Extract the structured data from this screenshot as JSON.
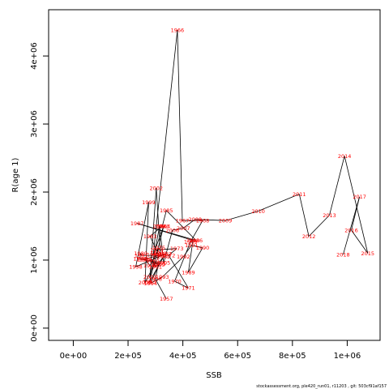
{
  "chart_data": {
    "type": "line",
    "title": "",
    "xlabel": "SSB",
    "ylabel": "R(age 1)",
    "xlim": [
      -90000,
      1120000
    ],
    "ylim": [
      -180000,
      4680000
    ],
    "xticks": [
      {
        "value": 0,
        "label": "0e+00"
      },
      {
        "value": 200000,
        "label": "2e+05"
      },
      {
        "value": 400000,
        "label": "4e+05"
      },
      {
        "value": 600000,
        "label": "6e+05"
      },
      {
        "value": 800000,
        "label": "8e+05"
      },
      {
        "value": 1000000,
        "label": "1e+06"
      }
    ],
    "yticks": [
      {
        "value": 0,
        "label": "0e+00"
      },
      {
        "value": 1000000,
        "label": "1e+06"
      },
      {
        "value": 2000000,
        "label": "2e+06"
      },
      {
        "value": 3000000,
        "label": "3e+06"
      },
      {
        "value": 4000000,
        "label": "4e+06"
      }
    ],
    "grid": false,
    "line_color": "#000000",
    "label_color": "#ff0000",
    "points": [
      {
        "label": "1957",
        "x": 340000,
        "y": 430000
      },
      {
        "label": "1958",
        "x": 300000,
        "y": 720000
      },
      {
        "label": "1959",
        "x": 310000,
        "y": 930000
      },
      {
        "label": "1960",
        "x": 290000,
        "y": 990000
      },
      {
        "label": "1961",
        "x": 300000,
        "y": 900000
      },
      {
        "label": "1962",
        "x": 330000,
        "y": 1050000
      },
      {
        "label": "1963",
        "x": 278000,
        "y": 680000
      },
      {
        "label": "1964",
        "x": 330000,
        "y": 1500000
      },
      {
        "label": "1965",
        "x": 292000,
        "y": 1080000
      },
      {
        "label": "1966",
        "x": 380000,
        "y": 4380000
      },
      {
        "label": "1967",
        "x": 398000,
        "y": 1580000
      },
      {
        "label": "1968",
        "x": 472000,
        "y": 1580000
      },
      {
        "label": "1969",
        "x": 428000,
        "y": 1270000
      },
      {
        "label": "1970",
        "x": 370000,
        "y": 690000
      },
      {
        "label": "1971",
        "x": 420000,
        "y": 590000
      },
      {
        "label": "1972",
        "x": 348000,
        "y": 1070000
      },
      {
        "label": "1973",
        "x": 378000,
        "y": 1170000
      },
      {
        "label": "1974",
        "x": 305000,
        "y": 1150000
      },
      {
        "label": "1975",
        "x": 312000,
        "y": 1180000
      },
      {
        "label": "1976",
        "x": 305000,
        "y": 1100000
      },
      {
        "label": "1977",
        "x": 280000,
        "y": 920000
      },
      {
        "label": "1978",
        "x": 262000,
        "y": 1010000
      },
      {
        "label": "1979",
        "x": 243000,
        "y": 1020000
      },
      {
        "label": "1980",
        "x": 246000,
        "y": 1100000
      },
      {
        "label": "1981",
        "x": 248000,
        "y": 1070000
      },
      {
        "label": "1982",
        "x": 313000,
        "y": 1070000
      },
      {
        "label": "1983",
        "x": 280000,
        "y": 1350000
      },
      {
        "label": "1984",
        "x": 325000,
        "y": 1500000
      },
      {
        "label": "1985",
        "x": 340000,
        "y": 1730000
      },
      {
        "label": "1986",
        "x": 448000,
        "y": 1290000
      },
      {
        "label": "1987",
        "x": 233000,
        "y": 1540000
      },
      {
        "label": "1988",
        "x": 437000,
        "y": 1290000
      },
      {
        "label": "1989",
        "x": 420000,
        "y": 820000
      },
      {
        "label": "1990",
        "x": 472000,
        "y": 1180000
      },
      {
        "label": "1991",
        "x": 432000,
        "y": 1220000
      },
      {
        "label": "1992",
        "x": 402000,
        "y": 1050000
      },
      {
        "label": "1993",
        "x": 325000,
        "y": 750000
      },
      {
        "label": "1994",
        "x": 282000,
        "y": 660000
      },
      {
        "label": "1995",
        "x": 315000,
        "y": 950000
      },
      {
        "label": "1996",
        "x": 255000,
        "y": 1010000
      },
      {
        "label": "1997",
        "x": 335000,
        "y": 1090000
      },
      {
        "label": "1998",
        "x": 228000,
        "y": 900000
      },
      {
        "label": "1999",
        "x": 275000,
        "y": 1850000
      },
      {
        "label": "2000",
        "x": 262000,
        "y": 670000
      },
      {
        "label": "2001",
        "x": 318000,
        "y": 1100000
      },
      {
        "label": "2002",
        "x": 303000,
        "y": 2060000
      },
      {
        "label": "2003",
        "x": 280000,
        "y": 750000
      },
      {
        "label": "2004",
        "x": 315000,
        "y": 1500000
      },
      {
        "label": "2005",
        "x": 330000,
        "y": 960000
      },
      {
        "label": "2006",
        "x": 362000,
        "y": 1440000
      },
      {
        "label": "2007",
        "x": 402000,
        "y": 1470000
      },
      {
        "label": "2008",
        "x": 445000,
        "y": 1600000
      },
      {
        "label": "2009",
        "x": 555000,
        "y": 1580000
      },
      {
        "label": "2010",
        "x": 675000,
        "y": 1720000
      },
      {
        "label": "2011",
        "x": 825000,
        "y": 1970000
      },
      {
        "label": "2012",
        "x": 860000,
        "y": 1350000
      },
      {
        "label": "2013",
        "x": 935000,
        "y": 1660000
      },
      {
        "label": "2014",
        "x": 990000,
        "y": 2530000
      },
      {
        "label": "2015",
        "x": 1075000,
        "y": 1100000
      },
      {
        "label": "2016",
        "x": 1015000,
        "y": 1440000
      },
      {
        "label": "2017",
        "x": 1045000,
        "y": 1930000
      },
      {
        "label": "2018",
        "x": 985000,
        "y": 1080000
      }
    ]
  },
  "footer_text": "stockassessment.org, ple420_run01, r11203 , git: 503cf91af157"
}
